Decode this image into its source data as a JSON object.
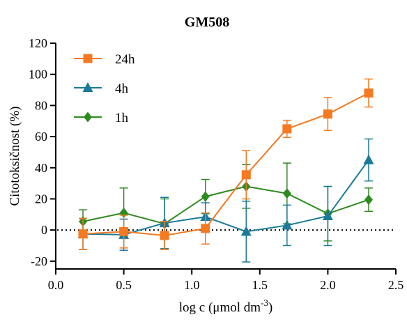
{
  "chart_data": {
    "type": "line",
    "title": "GM508",
    "xlabel": "log c (μmol dm",
    "xlabel_sup": "-3",
    "xlabel_end": ")",
    "ylabel": "Citotoksičnost (%)",
    "xlim": [
      0.0,
      2.5
    ],
    "ylim": [
      -25,
      120
    ],
    "x_ticks": [
      0.0,
      0.5,
      1.0,
      1.5,
      2.0,
      2.5
    ],
    "x_tick_labels": [
      "0.0",
      "0.5",
      "1.0",
      "1.5",
      "2.0",
      "2.5"
    ],
    "y_ticks": [
      -20,
      0,
      20,
      40,
      60,
      80,
      100,
      120
    ],
    "y_tick_labels": [
      "-20",
      "0",
      "20",
      "40",
      "60",
      "80",
      "100",
      "120"
    ],
    "zero_reference_line": {
      "y": 0,
      "style": "dotted"
    },
    "grid": false,
    "legend": "top-left",
    "series": [
      {
        "name": "24h",
        "color": "#f47920",
        "marker": "square",
        "x": [
          0.2,
          0.5,
          0.8,
          1.1,
          1.4,
          1.7,
          2.0,
          2.3
        ],
        "y": [
          -2.5,
          -1,
          -3.5,
          1,
          35.5,
          65,
          74.5,
          88
        ],
        "err": [
          10,
          10.5,
          9,
          10,
          15.5,
          5.5,
          10.5,
          9
        ]
      },
      {
        "name": "4h",
        "color": "#1b7a99",
        "marker": "triangle",
        "x": [
          0.2,
          0.5,
          0.8,
          1.1,
          1.4,
          1.7,
          2.0,
          2.3
        ],
        "y": [
          -2.5,
          -3,
          4.5,
          8.5,
          -1,
          3,
          9,
          45
        ],
        "err": [
          10,
          10,
          16.5,
          9,
          19.5,
          13,
          19,
          13.5
        ]
      },
      {
        "name": "1h",
        "color": "#2e8b1f",
        "marker": "diamond",
        "x": [
          0.2,
          0.5,
          0.8,
          1.1,
          1.4,
          1.7,
          2.0,
          2.3
        ],
        "y": [
          5.5,
          11,
          4,
          21.5,
          28,
          23.5,
          10.5,
          19.5
        ],
        "err": [
          7.5,
          16,
          16,
          11,
          14,
          19.5,
          17.5,
          7.5
        ]
      }
    ]
  }
}
